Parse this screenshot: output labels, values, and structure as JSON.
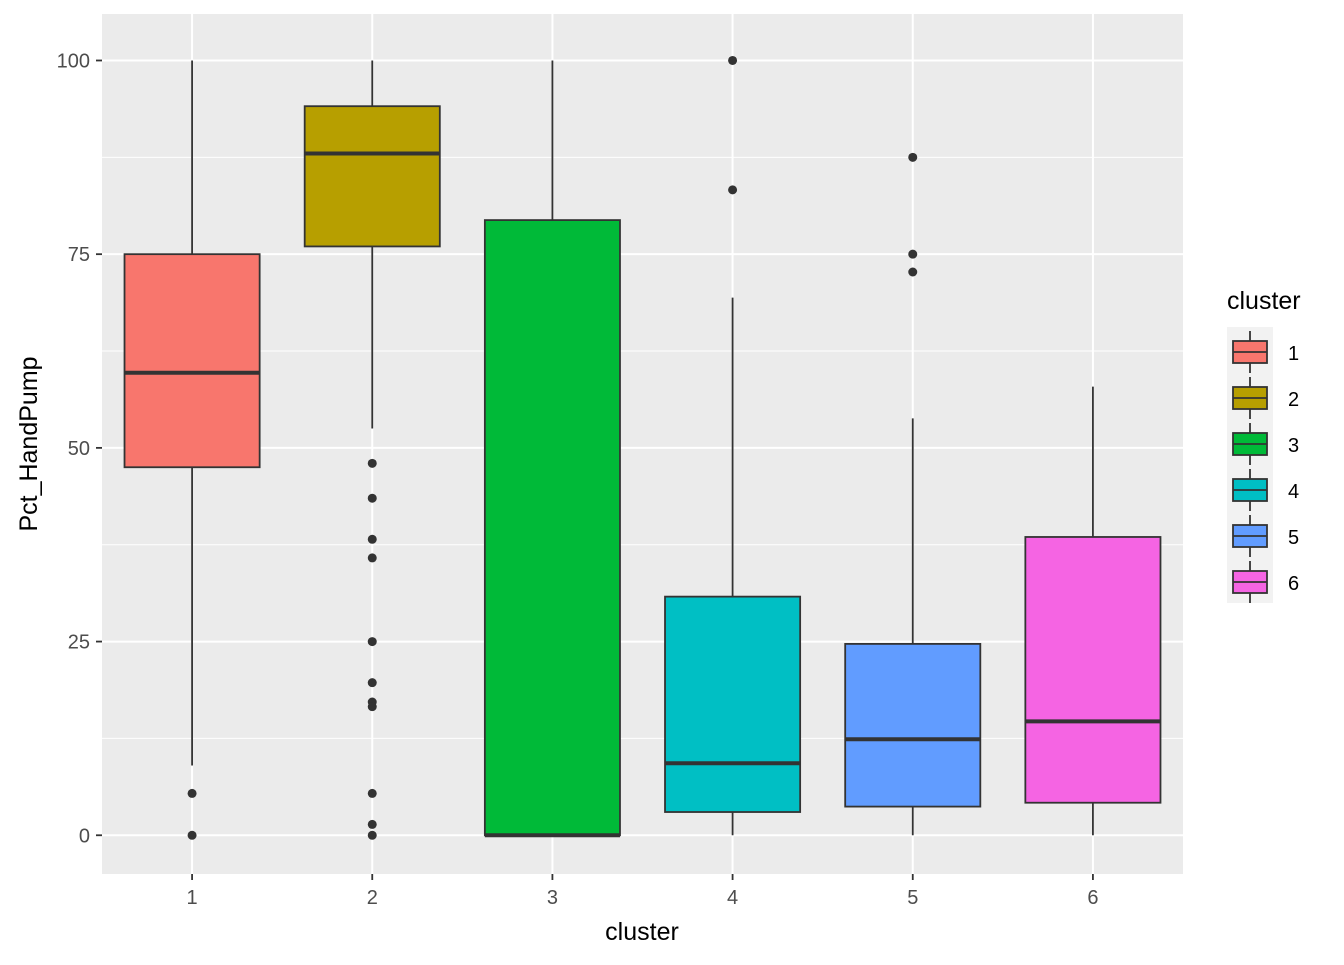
{
  "chart_data": {
    "type": "boxplot",
    "xlabel": "cluster",
    "ylabel": "Pct_HandPump",
    "ylim": [
      -5,
      106
    ],
    "y_ticks": [
      0,
      25,
      50,
      75,
      100
    ],
    "y_tick_labels": [
      "0",
      "25",
      "50",
      "75",
      "100"
    ],
    "categories": [
      "1",
      "2",
      "3",
      "4",
      "5",
      "6"
    ],
    "grid": true,
    "legend": {
      "title": "cluster",
      "position": "right",
      "entries": [
        "1",
        "2",
        "3",
        "4",
        "5",
        "6"
      ]
    },
    "colors": [
      "#F8766D",
      "#B79F00",
      "#00BA38",
      "#00BFC4",
      "#619CFF",
      "#F564E3"
    ],
    "panel_background": "#EBEBEB",
    "series": [
      {
        "category": "1",
        "whisker_low": 9,
        "q1": 47.5,
        "median": 59.7,
        "q3": 75,
        "whisker_high": 100,
        "outliers": [
          5.4,
          0
        ]
      },
      {
        "category": "2",
        "whisker_low": 52.5,
        "q1": 76,
        "median": 88,
        "q3": 94.1,
        "whisker_high": 100,
        "outliers": [
          48,
          43.5,
          38.2,
          35.8,
          25,
          19.7,
          17.2,
          16.6,
          5.4,
          1.4,
          0
        ]
      },
      {
        "category": "3",
        "whisker_low": 0,
        "q1": 0,
        "median": 0,
        "q3": 79.4,
        "whisker_high": 100,
        "outliers": []
      },
      {
        "category": "4",
        "whisker_low": 0,
        "q1": 3,
        "median": 9.3,
        "q3": 30.8,
        "whisker_high": 69.4,
        "outliers": [
          100,
          83.3
        ]
      },
      {
        "category": "5",
        "whisker_low": 0,
        "q1": 3.7,
        "median": 12.4,
        "q3": 24.7,
        "whisker_high": 53.8,
        "outliers": [
          87.5,
          75,
          72.7
        ]
      },
      {
        "category": "6",
        "whisker_low": 0,
        "q1": 4.2,
        "median": 14.7,
        "q3": 38.5,
        "whisker_high": 57.9,
        "outliers": []
      }
    ]
  }
}
